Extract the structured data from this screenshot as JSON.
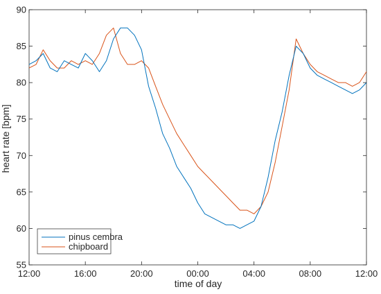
{
  "chart_data": {
    "type": "line",
    "xlabel": "time of day",
    "ylabel": "heart rate [bpm]",
    "xlim": [
      0,
      24
    ],
    "ylim": [
      55,
      90
    ],
    "x_ticks": [
      {
        "value": 0,
        "label": "12:00"
      },
      {
        "value": 4,
        "label": "16:00"
      },
      {
        "value": 8,
        "label": "20:00"
      },
      {
        "value": 12,
        "label": "00:00"
      },
      {
        "value": 16,
        "label": "04:00"
      },
      {
        "value": 20,
        "label": "08:00"
      },
      {
        "value": 24,
        "label": "12:00"
      }
    ],
    "y_ticks": [
      55,
      60,
      65,
      70,
      75,
      80,
      85,
      90
    ],
    "grid": false,
    "legend": "bottom-left",
    "series": [
      {
        "name": "pinus cembra",
        "color": "#0072BD",
        "x": [
          0,
          0.5,
          1,
          1.5,
          2,
          2.5,
          3,
          3.5,
          4,
          4.5,
          5,
          5.5,
          6,
          6.5,
          7,
          7.5,
          8,
          8.5,
          9,
          9.5,
          10,
          10.5,
          11,
          11.5,
          12,
          12.5,
          13,
          13.5,
          14,
          14.5,
          15,
          15.5,
          16,
          16.5,
          17,
          17.5,
          18,
          18.5,
          19,
          19.5,
          20,
          20.5,
          21,
          21.5,
          22,
          22.5,
          23,
          23.5,
          24
        ],
        "values": [
          82.5,
          83,
          84,
          82,
          81.5,
          83,
          82.5,
          82,
          84,
          83,
          81.5,
          83,
          86,
          87.5,
          87.5,
          86.5,
          84.5,
          79.5,
          76.5,
          73,
          71,
          68.5,
          67,
          65.5,
          63.5,
          62,
          61.5,
          61,
          60.5,
          60.5,
          60,
          60.5,
          61,
          63,
          67,
          72,
          76,
          81,
          85,
          84,
          82,
          81,
          80.5,
          80,
          79.5,
          79,
          78.5,
          79,
          80
        ]
      },
      {
        "name": "chipboard",
        "color": "#D95319",
        "x": [
          0,
          0.5,
          1,
          1.5,
          2,
          2.5,
          3,
          3.5,
          4,
          4.5,
          5,
          5.5,
          6,
          6.5,
          7,
          7.5,
          8,
          8.5,
          9,
          9.5,
          10,
          10.5,
          11,
          11.5,
          12,
          12.5,
          13,
          13.5,
          14,
          14.5,
          15,
          15.5,
          16,
          16.5,
          17,
          17.5,
          18,
          18.5,
          19,
          19.5,
          20,
          20.5,
          21,
          21.5,
          22,
          22.5,
          23,
          23.5,
          24
        ],
        "values": [
          82,
          82.5,
          84.5,
          83,
          82,
          82,
          83,
          82.5,
          83,
          82.5,
          84,
          86.5,
          87.5,
          84,
          82.5,
          82.5,
          83,
          82,
          79.5,
          77,
          75,
          73,
          71.5,
          70,
          68.5,
          67.5,
          66.5,
          65.5,
          64.5,
          63.5,
          62.5,
          62.5,
          62,
          63,
          65,
          69,
          74,
          79,
          86,
          84,
          82.5,
          81.5,
          81,
          80.5,
          80,
          80,
          79.5,
          80,
          81.5
        ]
      }
    ]
  }
}
